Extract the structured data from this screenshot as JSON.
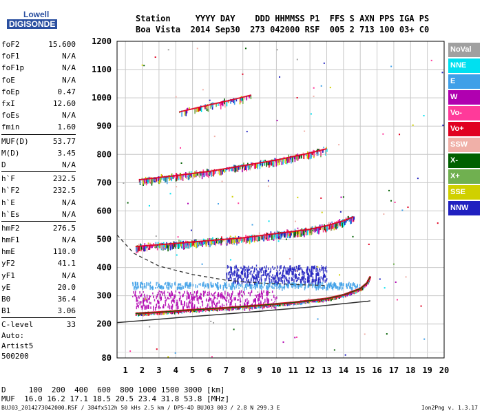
{
  "logo": {
    "line1": "Lowell",
    "line2": "DIGISONDE"
  },
  "header": {
    "row1": "Station     YYYY DAY    DDD HHMMSS P1  FFS S AXN PPS IGA PS",
    "row2": "Boa Vista  2014 Sep30  273 042000 RSF  005 2 713 100 03+ C0"
  },
  "params": [
    {
      "k": "foF2",
      "v": "15.600"
    },
    {
      "k": "foF1",
      "v": "N/A"
    },
    {
      "k": "foF1p",
      "v": "N/A"
    },
    {
      "k": "foE",
      "v": "N/A"
    },
    {
      "k": "foEp",
      "v": "0.47"
    },
    {
      "k": "fxI",
      "v": "12.60"
    },
    {
      "k": "foEs",
      "v": "N/A"
    },
    {
      "k": "fmin",
      "v": "1.60"
    },
    {
      "k": "MUF(D)",
      "v": "53.77"
    },
    {
      "k": "M(D)",
      "v": "3.45"
    },
    {
      "k": "D",
      "v": "N/A"
    },
    {
      "k": "h`F",
      "v": "232.5"
    },
    {
      "k": "h`F2",
      "v": "232.5"
    },
    {
      "k": "h`E",
      "v": "N/A"
    },
    {
      "k": "h`Es",
      "v": "N/A"
    },
    {
      "k": "hmF2",
      "v": "276.5"
    },
    {
      "k": "hmF1",
      "v": "N/A"
    },
    {
      "k": "hmE",
      "v": "110.0"
    },
    {
      "k": "yF2",
      "v": "41.1"
    },
    {
      "k": "yF1",
      "v": "N/A"
    },
    {
      "k": "yE",
      "v": "20.0"
    },
    {
      "k": "B0",
      "v": "36.4"
    },
    {
      "k": "B1",
      "v": "3.06"
    },
    {
      "k": "C-level",
      "v": "33"
    }
  ],
  "auto": {
    "l1": "Auto:",
    "l2": "Artist5",
    "l3": "500200"
  },
  "legend": [
    {
      "name": "NoVal",
      "color": "#a0a0a0"
    },
    {
      "name": "NNE",
      "color": "#00e0f0"
    },
    {
      "name": "E",
      "color": "#3fa0e8"
    },
    {
      "name": "W",
      "color": "#b000b0"
    },
    {
      "name": "Vo-",
      "color": "#ff3a9a"
    },
    {
      "name": "Vo+",
      "color": "#e00020"
    },
    {
      "name": "SSW",
      "color": "#f0b0a8"
    },
    {
      "name": "X-",
      "color": "#006000"
    },
    {
      "name": "X+",
      "color": "#70b050"
    },
    {
      "name": "SSE",
      "color": "#d0d000"
    },
    {
      "name": "NNW",
      "color": "#2020c0"
    }
  ],
  "bottom": {
    "row1": "D     100  200  400  600  800 1000 1500 3000 [km]",
    "row2": "MUF  16.0 16.2 17.1 18.5 20.5 23.4 31.8 53.8 [MHz]"
  },
  "footer": {
    "left": "BUJ03_2014273042000.RSF / 384fx512h 50 kHs 2.5 km / DPS-4D BUJ03 003 / 2.8 N 299.3 E",
    "right": "Ion2Png v. 1.3.17"
  },
  "chart_data": {
    "type": "scatter",
    "xlim": [
      0.5,
      20
    ],
    "ylim": [
      80,
      1200
    ],
    "xticks": [
      1,
      2,
      3,
      4,
      5,
      6,
      7,
      8,
      9,
      10,
      11,
      12,
      13,
      14,
      15,
      16,
      17,
      18,
      19,
      20
    ],
    "yticks": [
      80,
      200,
      300,
      400,
      500,
      600,
      700,
      800,
      900,
      1000,
      1100,
      1200
    ],
    "grid": true,
    "traces": [
      {
        "name": "F2 trace",
        "x": [
          1.6,
          3,
          5,
          7,
          9,
          11,
          13,
          14,
          15,
          15.4,
          15.6
        ],
        "y": [
          237,
          242,
          250,
          257,
          266,
          276,
          290,
          303,
          325,
          345,
          368
        ]
      },
      {
        "name": "2F2 echo",
        "x": [
          1.6,
          4,
          6,
          8,
          10,
          12,
          13,
          14,
          14.6
        ],
        "y": [
          474,
          485,
          495,
          505,
          520,
          535,
          548,
          565,
          580
        ]
      },
      {
        "name": "3F2 echo",
        "x": [
          1.8,
          4,
          6,
          8,
          10,
          12,
          13
        ],
        "y": [
          710,
          725,
          740,
          760,
          780,
          805,
          820
        ]
      },
      {
        "name": "4F2 echo",
        "x": [
          4.2,
          6,
          7.5,
          8.5
        ],
        "y": [
          950,
          975,
          995,
          1010
        ]
      }
    ],
    "profile": {
      "x": [
        0.5,
        2,
        4,
        6,
        8,
        10,
        12,
        14,
        15,
        15.4,
        15.6
      ],
      "y": [
        205,
        212,
        222,
        231,
        240,
        250,
        260,
        272,
        278,
        280,
        282
      ]
    },
    "dashed": {
      "x": [
        0.5,
        1.5,
        3,
        5,
        7,
        9,
        11,
        12,
        13
      ],
      "y": [
        515,
        450,
        405,
        375,
        355,
        345,
        340,
        338,
        336
      ]
    },
    "color_bands": [
      {
        "x": [
          1.4,
          15
        ],
        "y": [
          330,
          350
        ],
        "color": "#3fa0e8"
      },
      {
        "x": [
          7,
          13
        ],
        "y": [
          350,
          410
        ],
        "color": "#2020c0"
      },
      {
        "x": [
          1.4,
          10
        ],
        "y": [
          260,
          320
        ],
        "color": "#b000b0"
      }
    ]
  }
}
